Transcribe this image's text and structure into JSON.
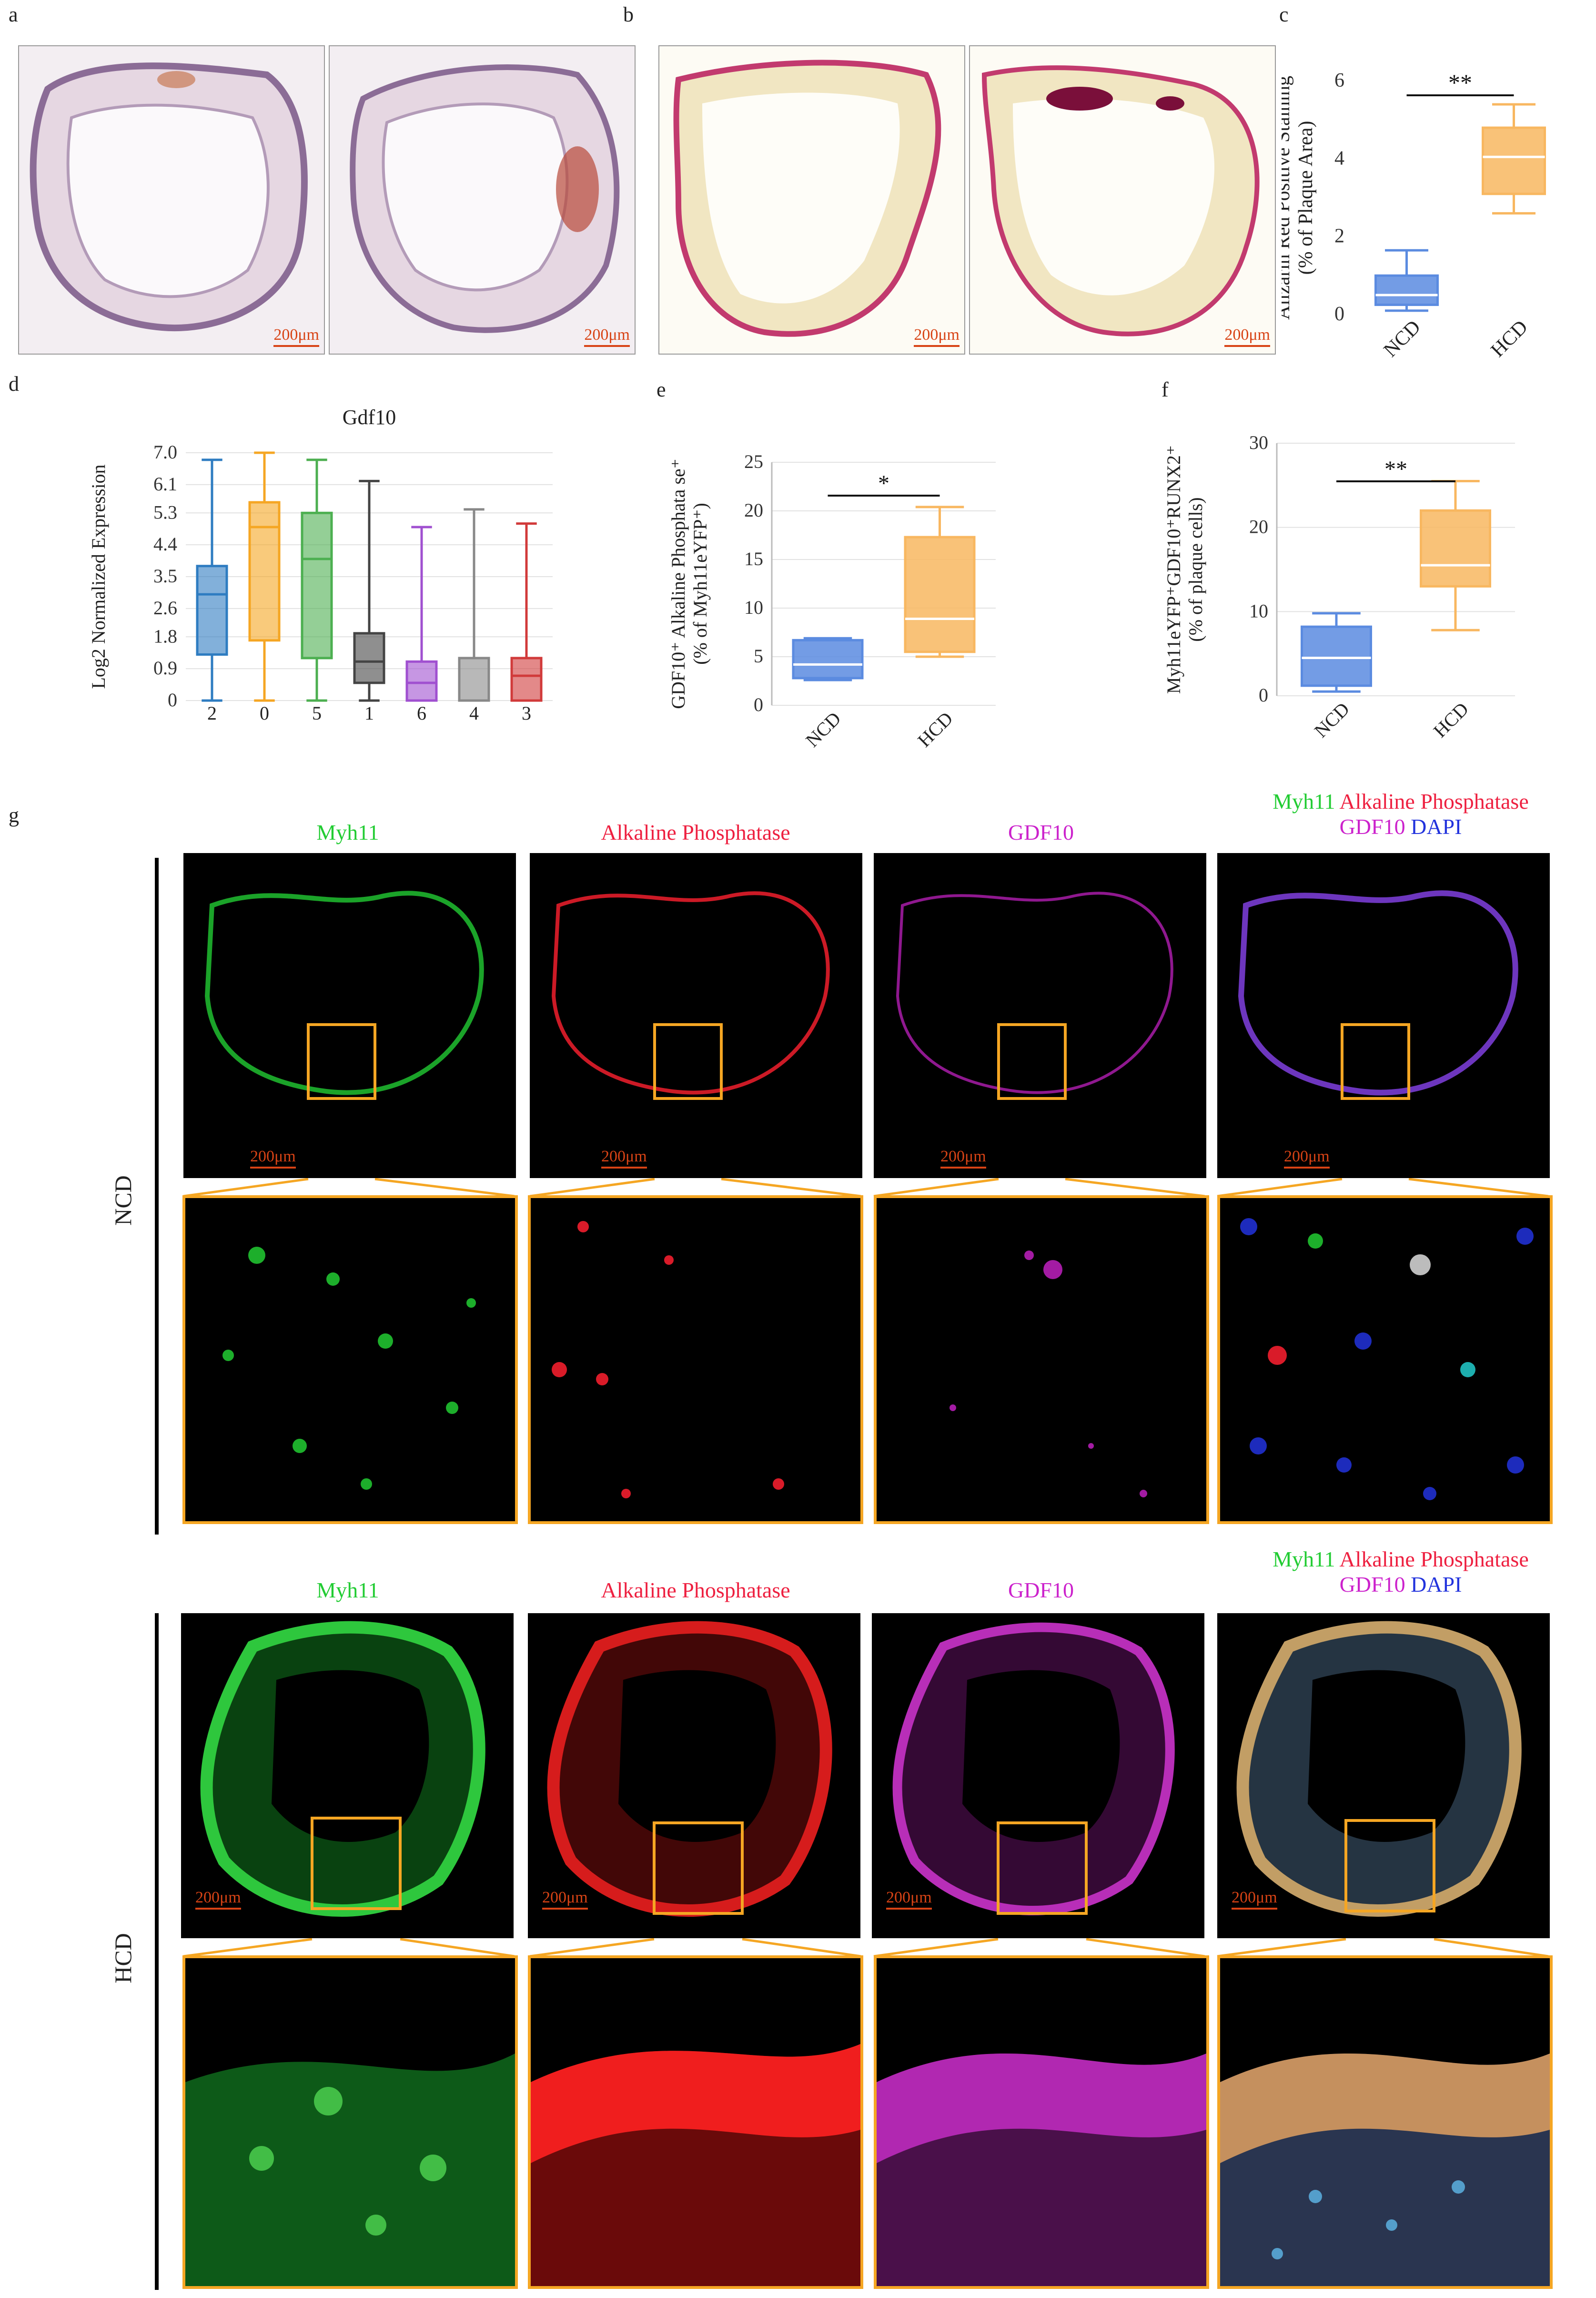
{
  "panels": {
    "a": "a",
    "b": "b",
    "c": "c",
    "d": "d",
    "e": "e",
    "f": "f",
    "g": "g"
  },
  "scale_label": "200μm",
  "colors": {
    "ncd": "#5b8be0",
    "hcd": "#f8b760",
    "scale": "#d84315",
    "zoom_box": "#f5a623",
    "green": "#22cc33",
    "red": "#ff2030",
    "magenta": "#cc22cc",
    "blue": "#2233dd"
  },
  "chart_data": [
    {
      "type": "box",
      "panel": "c",
      "title": "",
      "ylabel": "Alizarin Red Positive Staining (% of Plaque Area)",
      "ylabel_lines": [
        "Alizarin Red Positive Staining",
        "(% of Plaque Area)"
      ],
      "categories": [
        "NCD",
        "HCD"
      ],
      "ylim": [
        0,
        6
      ],
      "yticks": [
        "0",
        "2",
        "4",
        "6"
      ],
      "boxes": [
        {
          "name": "NCD",
          "min": 0.1,
          "q1": 0.25,
          "median": 0.5,
          "q3": 1.0,
          "max": 1.65
        },
        {
          "name": "HCD",
          "min": 2.6,
          "q1": 3.1,
          "median": 4.05,
          "q3": 4.8,
          "max": 5.4
        }
      ],
      "significance": "**"
    },
    {
      "type": "box",
      "panel": "d",
      "title": "Gdf10",
      "ylabel": "Log2 Normalized Expression",
      "categories": [
        "2",
        "0",
        "5",
        "1",
        "6",
        "4",
        "3"
      ],
      "ylim": [
        0,
        7.0
      ],
      "yticks": [
        "0",
        "0.9",
        "1.8",
        "2.6",
        "3.5",
        "4.4",
        "5.3",
        "6.1",
        "7.0"
      ],
      "boxes": [
        {
          "name": "2",
          "min": 0,
          "q1": 1.3,
          "median": 3.0,
          "q3": 3.8,
          "max": 6.8,
          "color": "#2e7cc1"
        },
        {
          "name": "0",
          "min": 0,
          "q1": 1.7,
          "median": 4.9,
          "q3": 5.6,
          "max": 7.0,
          "color": "#f5a623"
        },
        {
          "name": "5",
          "min": 0,
          "q1": 1.2,
          "median": 4.0,
          "q3": 5.3,
          "max": 6.8,
          "color": "#4caf50"
        },
        {
          "name": "1",
          "min": 0,
          "q1": 0.5,
          "median": 1.1,
          "q3": 1.9,
          "max": 6.2,
          "color": "#444444"
        },
        {
          "name": "6",
          "min": 0,
          "q1": 0,
          "median": 0.5,
          "q3": 1.1,
          "max": 4.9,
          "color": "#a050d0"
        },
        {
          "name": "4",
          "min": 0,
          "q1": 0,
          "median": 0,
          "q3": 1.2,
          "max": 5.4,
          "color": "#888888"
        },
        {
          "name": "3",
          "min": 0,
          "q1": 0,
          "median": 0.7,
          "q3": 1.2,
          "max": 5.0,
          "color": "#d13a3a"
        }
      ]
    },
    {
      "type": "box",
      "panel": "e",
      "title": "",
      "ylabel": "GDF10+ Alkaline Phosphatase+ (% of Myh11eYFP+)",
      "ylabel_lines": [
        "GDF10⁺ Alkaline Phosphata se⁺",
        "(% of Myh11eYFP⁺)"
      ],
      "categories": [
        "NCD",
        "HCD"
      ],
      "ylim": [
        0,
        25
      ],
      "yticks": [
        "0",
        "5",
        "10",
        "15",
        "20",
        "25"
      ],
      "boxes": [
        {
          "name": "NCD",
          "min": 2.6,
          "q1": 2.8,
          "median": 4.2,
          "q3": 6.7,
          "max": 6.9
        },
        {
          "name": "HCD",
          "min": 5.0,
          "q1": 5.5,
          "median": 8.9,
          "q3": 17.3,
          "max": 20.4
        }
      ],
      "significance": "*"
    },
    {
      "type": "box",
      "panel": "f",
      "title": "",
      "ylabel": "Myh11eYFP+GDF10+RUNX2+ (% of plaque cells)",
      "ylabel_lines": [
        "Myh11eYFP⁺GDF10⁺RUNX2⁺",
        "(% of plaque cells)"
      ],
      "categories": [
        "NCD",
        "HCD"
      ],
      "ylim": [
        0,
        30
      ],
      "yticks": [
        "0",
        "10",
        "20",
        "30"
      ],
      "boxes": [
        {
          "name": "NCD",
          "min": 0.5,
          "q1": 1.2,
          "median": 4.5,
          "q3": 8.2,
          "max": 9.8
        },
        {
          "name": "HCD",
          "min": 7.8,
          "q1": 13.0,
          "median": 15.5,
          "q3": 22.0,
          "max": 25.5
        }
      ],
      "significance": "**"
    }
  ],
  "panel_g": {
    "rows": [
      "NCD",
      "HCD"
    ],
    "channels": [
      "Myh11",
      "Alkaline Phosphatase",
      "GDF10"
    ],
    "merge_line1": [
      "Myh11",
      "Alkaline Phosphatase"
    ],
    "merge_line2": [
      "GDF10",
      "DAPI"
    ]
  }
}
